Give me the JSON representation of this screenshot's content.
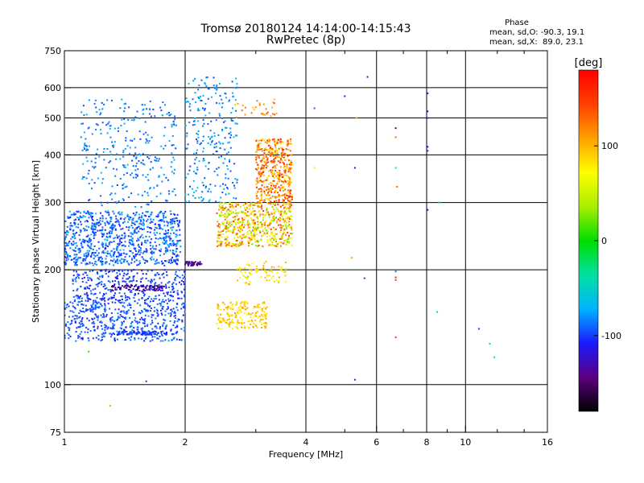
{
  "chart_data": {
    "type": "scatter",
    "title_line1": "Tromsø 20180124 14:14:00-14:15:43",
    "title_line2": "RwPretec (8p)",
    "xlabel": "Frequency [MHz]",
    "ylabel": "Stationary phase Virtual Height [km]",
    "x_scale": "log",
    "y_scale": "log",
    "xlim": [
      1,
      16
    ],
    "ylim": [
      75,
      750
    ],
    "x_ticks": [
      1,
      2,
      4,
      6,
      8,
      10,
      16
    ],
    "x_tick_labels": [
      "1",
      "2",
      "4",
      "6",
      "8",
      "10",
      "16"
    ],
    "y_ticks": [
      75,
      100,
      200,
      300,
      400,
      500,
      600,
      750
    ],
    "y_tick_labels": [
      "75",
      "100",
      "200",
      "300",
      "400",
      "500",
      "600",
      "750"
    ],
    "grid": true,
    "phase_box": {
      "heading": "Phase",
      "line_o": "mean, sd,O: -90.3, 19.1",
      "line_x": "mean, sd,X:  89.0, 23.1"
    },
    "colorbar": {
      "unit_label": "[deg]",
      "range": [
        -180,
        180
      ],
      "ticks": [
        100,
        0,
        -100
      ],
      "tick_labels": [
        "100",
        "0",
        "-100"
      ],
      "colormap": [
        "#000000",
        "#5a0080",
        "#1a1aff",
        "#00b4ff",
        "#00e0a0",
        "#00dd00",
        "#aaee00",
        "#ffff00",
        "#ffa000",
        "#ff4000",
        "#ff0000"
      ]
    },
    "series": [
      {
        "mode": "O",
        "phase_mean": -90.3,
        "clusters": [
          {
            "f": [
              1.0,
              1.95
            ],
            "h": [
              205,
              285
            ],
            "n": 900,
            "phase": [
              -110,
              -70
            ]
          },
          {
            "f": [
              1.0,
              2.0
            ],
            "h": [
              130,
              165
            ],
            "n": 500,
            "phase": [
              -110,
              -80
            ]
          },
          {
            "f": [
              1.05,
              2.0
            ],
            "h": [
              165,
              200
            ],
            "n": 350,
            "phase": [
              -115,
              -85
            ]
          },
          {
            "f": [
              1.1,
              1.9
            ],
            "h": [
              290,
              560
            ],
            "n": 300,
            "phase": [
              -100,
              -70
            ]
          },
          {
            "f": [
              2.0,
              2.7
            ],
            "h": [
              300,
              640
            ],
            "n": 250,
            "phase": [
              -100,
              -60
            ]
          },
          {
            "f": [
              1.3,
              1.8
            ],
            "h": [
              176,
              182
            ],
            "n": 80,
            "phase": [
              -160,
              -120
            ]
          },
          {
            "f": [
              2.0,
              2.2
            ],
            "h": [
              205,
              210
            ],
            "n": 40,
            "phase": [
              -160,
              -120
            ]
          },
          {
            "f": [
              1.35,
              1.8
            ],
            "h": [
              135,
              138
            ],
            "n": 90,
            "phase": [
              -110,
              -90
            ]
          }
        ]
      },
      {
        "mode": "X",
        "phase_mean": 89.0,
        "clusters": [
          {
            "f": [
              2.4,
              3.7
            ],
            "h": [
              230,
              300
            ],
            "n": 600,
            "phase": [
              20,
              150
            ]
          },
          {
            "f": [
              3.0,
              3.7
            ],
            "h": [
              300,
              440
            ],
            "n": 450,
            "phase": [
              80,
              160
            ]
          },
          {
            "f": [
              2.6,
              3.4
            ],
            "h": [
              500,
              560
            ],
            "n": 30,
            "phase": [
              90,
              140
            ]
          },
          {
            "f": [
              2.4,
              3.2
            ],
            "h": [
              140,
              165
            ],
            "n": 200,
            "phase": [
              70,
              110
            ]
          },
          {
            "f": [
              2.7,
              3.6
            ],
            "h": [
              183,
              210
            ],
            "n": 80,
            "phase": [
              40,
              110
            ]
          }
        ]
      }
    ],
    "isolated_points": [
      {
        "f": 4.2,
        "h": 530,
        "phase": -90
      },
      {
        "f": 5.0,
        "h": 570,
        "phase": -110
      },
      {
        "f": 5.3,
        "h": 370,
        "phase": -120
      },
      {
        "f": 5.35,
        "h": 500,
        "phase": 110
      },
      {
        "f": 5.6,
        "h": 190,
        "phase": -100
      },
      {
        "f": 5.7,
        "h": 640,
        "phase": -110
      },
      {
        "f": 5.2,
        "h": 215,
        "phase": 110
      },
      {
        "f": 5.3,
        "h": 103,
        "phase": -110
      },
      {
        "f": 6.7,
        "h": 470,
        "phase": -150
      },
      {
        "f": 6.7,
        "h": 445,
        "phase": 130
      },
      {
        "f": 6.7,
        "h": 370,
        "phase": -40
      },
      {
        "f": 6.75,
        "h": 330,
        "phase": 130
      },
      {
        "f": 6.7,
        "h": 198,
        "phase": -90
      },
      {
        "f": 6.7,
        "h": 191,
        "phase": 160
      },
      {
        "f": 6.7,
        "h": 188,
        "phase": 150
      },
      {
        "f": 6.7,
        "h": 133,
        "phase": 150
      },
      {
        "f": 8.05,
        "h": 580,
        "phase": -110
      },
      {
        "f": 8.05,
        "h": 520,
        "phase": -110
      },
      {
        "f": 8.05,
        "h": 500,
        "phase": -100
      },
      {
        "f": 8.05,
        "h": 420,
        "phase": -110
      },
      {
        "f": 8.05,
        "h": 410,
        "phase": -100
      },
      {
        "f": 8.05,
        "h": 287,
        "phase": -110
      },
      {
        "f": 8.5,
        "h": 155,
        "phase": -20
      },
      {
        "f": 8.6,
        "h": 300,
        "phase": -30
      },
      {
        "f": 10.8,
        "h": 140,
        "phase": -100
      },
      {
        "f": 11.5,
        "h": 128,
        "phase": -40
      },
      {
        "f": 11.8,
        "h": 118,
        "phase": -40
      },
      {
        "f": 4.2,
        "h": 370,
        "phase": 80
      },
      {
        "f": 1.15,
        "h": 122,
        "phase": 10
      },
      {
        "f": 1.6,
        "h": 102,
        "phase": -100
      },
      {
        "f": 1.3,
        "h": 88,
        "phase": 110
      }
    ]
  }
}
